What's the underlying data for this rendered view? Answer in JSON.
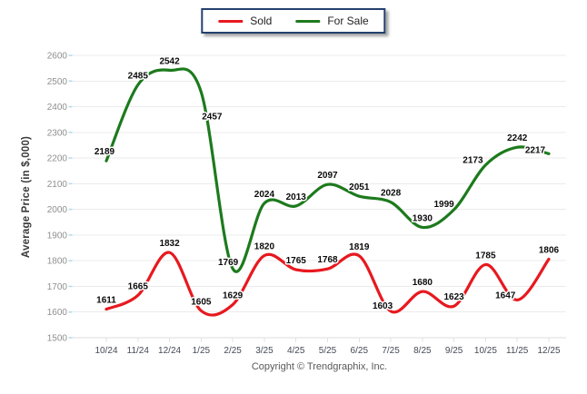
{
  "legend": {
    "items": [
      {
        "label": "Sold",
        "color": "#e7191f"
      },
      {
        "label": "For Sale",
        "color": "#1d7a1d"
      }
    ]
  },
  "footer": {
    "copyright": "Copyright © Trendgraphix, Inc."
  },
  "chart_data": {
    "type": "line",
    "title": "",
    "xlabel": "",
    "ylabel": "Average Price (in $,000)",
    "categories": [
      "10/24",
      "11/24",
      "12/24",
      "1/25",
      "2/25",
      "3/25",
      "4/25",
      "5/25",
      "6/25",
      "7/25",
      "8/25",
      "9/25",
      "10/25",
      "11/25",
      "12/25"
    ],
    "series": [
      {
        "name": "Sold",
        "color": "#e7191f",
        "values": [
          1611,
          1665,
          1832,
          1605,
          1629,
          1820,
          1765,
          1768,
          1819,
          1603,
          1680,
          1623,
          1785,
          1647,
          1806
        ]
      },
      {
        "name": "For Sale",
        "color": "#1d7a1d",
        "values": [
          2189,
          2485,
          2542,
          2457,
          1769,
          2024,
          2013,
          2097,
          2051,
          2028,
          1930,
          1999,
          2173,
          2242,
          2217
        ]
      }
    ],
    "ylim": [
      1500,
      2600
    ],
    "ytick_step": 100,
    "grid": "horizontal",
    "legend_position": "top-center",
    "smooth": true,
    "point_labels": true,
    "label_offsets": {
      "For Sale": {
        "0": {
          "dx": -2,
          "dy": 0
        },
        "3": {
          "dx": 12,
          "dy": 37
        },
        "4": {
          "dx": -5,
          "dy": 3
        },
        "11": {
          "dx": -11,
          "dy": 4
        },
        "12": {
          "dx": -14,
          "dy": 5
        },
        "14": {
          "dx": -15,
          "dy": 6
        }
      },
      "Sold": {
        "9": {
          "dx": -9,
          "dy": 4
        },
        "13": {
          "dx": -13,
          "dy": 5
        }
      }
    }
  }
}
